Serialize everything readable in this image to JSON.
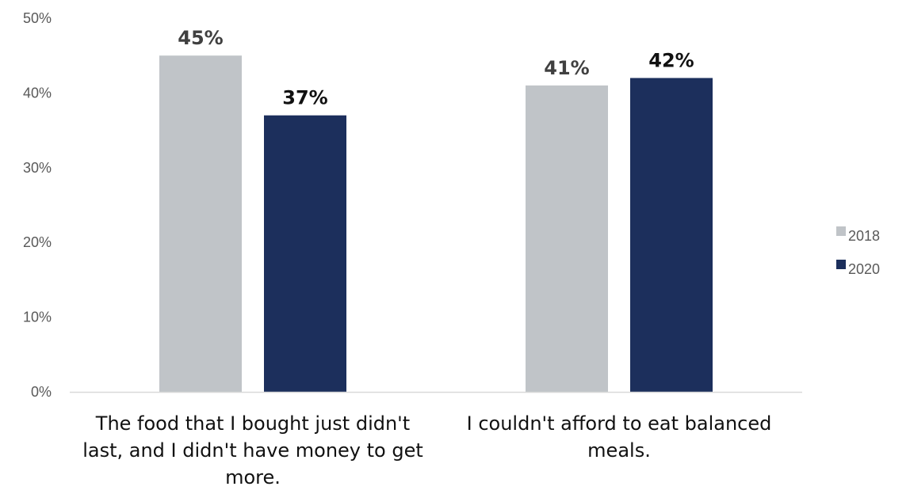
{
  "chart_data": {
    "type": "bar",
    "categories": [
      "The food that I bought just didn't last, and I didn't have money to get more.",
      "I couldn't afford to eat balanced meals."
    ],
    "category_lines": [
      [
        "The food that I bought just didn't",
        "last, and I didn't have money to get",
        "more."
      ],
      [
        "I couldn't afford to eat balanced",
        "meals."
      ]
    ],
    "series": [
      {
        "name": "2018",
        "values": [
          45,
          41
        ],
        "labels": [
          "45%",
          "41%"
        ],
        "color": "#c0c4c8",
        "label_color": "#404040"
      },
      {
        "name": "2020",
        "values": [
          37,
          42
        ],
        "labels": [
          "37%",
          "42%"
        ],
        "color": "#1c2f5c",
        "label_color": "#111111"
      }
    ],
    "ylim": [
      0,
      50
    ],
    "yticks": [
      0,
      10,
      20,
      30,
      40,
      50
    ],
    "ytick_labels": [
      "0%",
      "10%",
      "20%",
      "30%",
      "40%",
      "50%"
    ],
    "grid": false,
    "legend_position": "right",
    "title": "",
    "xlabel": "",
    "ylabel": ""
  }
}
